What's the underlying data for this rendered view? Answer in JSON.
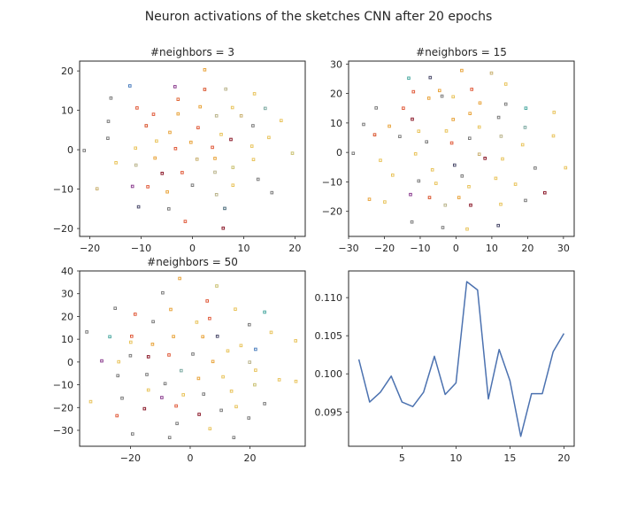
{
  "figure": {
    "title": "Neuron activations of the sketches CNN after 20 epochs",
    "background": "#ffffff",
    "axes_color": "#262626"
  },
  "chart_data": [
    {
      "type": "scatter",
      "title": "#neighbors = 3",
      "xlim": [
        -22,
        22
      ],
      "ylim": [
        -22,
        22.5
      ],
      "xticks": [
        -20,
        -10,
        0,
        10,
        20
      ],
      "yticks": [
        -20,
        -10,
        0,
        10,
        20
      ],
      "grid": false,
      "points": [
        {
          "x": 2.4,
          "y": 20.3,
          "color": "#e8a33a"
        },
        {
          "x": -12.2,
          "y": 16.2,
          "color": "#4a7dbd"
        },
        {
          "x": -3.4,
          "y": 16.0,
          "color": "#8b3d8f"
        },
        {
          "x": 2.4,
          "y": 15.3,
          "color": "#d9532c"
        },
        {
          "x": 6.5,
          "y": 15.4,
          "color": "#b9b38a"
        },
        {
          "x": -15.9,
          "y": 13.1,
          "color": "#7a7a7a"
        },
        {
          "x": -2.8,
          "y": 12.8,
          "color": "#e06a3a"
        },
        {
          "x": 12.1,
          "y": 14.2,
          "color": "#e8c35a"
        },
        {
          "x": -10.8,
          "y": 10.6,
          "color": "#e05a3a"
        },
        {
          "x": 1.5,
          "y": 10.9,
          "color": "#e8a33a"
        },
        {
          "x": 7.8,
          "y": 10.7,
          "color": "#e8c35a"
        },
        {
          "x": 14.2,
          "y": 10.5,
          "color": "#7aa8a0"
        },
        {
          "x": -7.6,
          "y": 9.0,
          "color": "#e05a3a"
        },
        {
          "x": -2.8,
          "y": 9.1,
          "color": "#e8a33a"
        },
        {
          "x": 4.7,
          "y": 8.6,
          "color": "#b9b38a"
        },
        {
          "x": 9.5,
          "y": 8.6,
          "color": "#c9b070"
        },
        {
          "x": -16.4,
          "y": 7.2,
          "color": "#7a7a7a"
        },
        {
          "x": 17.3,
          "y": 7.4,
          "color": "#e8c35a"
        },
        {
          "x": -9.0,
          "y": 6.1,
          "color": "#d9532c"
        },
        {
          "x": 1.1,
          "y": 5.6,
          "color": "#e05a3a"
        },
        {
          "x": 11.8,
          "y": 6.1,
          "color": "#7a7a7a"
        },
        {
          "x": -4.4,
          "y": 4.4,
          "color": "#e8a33a"
        },
        {
          "x": 5.6,
          "y": 3.9,
          "color": "#e8c35a"
        },
        {
          "x": -16.5,
          "y": 2.9,
          "color": "#7a7a7a"
        },
        {
          "x": -7.0,
          "y": 2.2,
          "color": "#e8c35a"
        },
        {
          "x": -0.3,
          "y": 1.9,
          "color": "#e8a33a"
        },
        {
          "x": 7.5,
          "y": 2.6,
          "color": "#8b1a2a"
        },
        {
          "x": 14.9,
          "y": 3.1,
          "color": "#e8c35a"
        },
        {
          "x": -11.1,
          "y": 0.4,
          "color": "#e8c35a"
        },
        {
          "x": -3.3,
          "y": 0.3,
          "color": "#e05a3a"
        },
        {
          "x": 3.9,
          "y": 0.6,
          "color": "#e05a3a"
        },
        {
          "x": 11.6,
          "y": 0.9,
          "color": "#e8c35a"
        },
        {
          "x": -21.1,
          "y": -0.2,
          "color": "#7a7a7a"
        },
        {
          "x": 19.5,
          "y": -0.9,
          "color": "#c9c070"
        },
        {
          "x": -7.3,
          "y": -2.1,
          "color": "#e8a33a"
        },
        {
          "x": 0.9,
          "y": -2.4,
          "color": "#c9b070"
        },
        {
          "x": 4.4,
          "y": -2.2,
          "color": "#e8a33a"
        },
        {
          "x": 11.9,
          "y": -2.5,
          "color": "#e8c35a"
        },
        {
          "x": -14.9,
          "y": -3.3,
          "color": "#e8c35a"
        },
        {
          "x": -11.0,
          "y": -3.9,
          "color": "#b9b38a"
        },
        {
          "x": 7.9,
          "y": -4.5,
          "color": "#c9c070"
        },
        {
          "x": -5.9,
          "y": -6.0,
          "color": "#8b1a2a"
        },
        {
          "x": -2.0,
          "y": -5.8,
          "color": "#e05a3a"
        },
        {
          "x": 4.4,
          "y": -5.7,
          "color": "#b9b38a"
        },
        {
          "x": 12.8,
          "y": -7.5,
          "color": "#7a7a7a"
        },
        {
          "x": -11.7,
          "y": -9.3,
          "color": "#8b3d8f"
        },
        {
          "x": -8.7,
          "y": -9.4,
          "color": "#e05a3a"
        },
        {
          "x": 0.0,
          "y": -9.0,
          "color": "#7a7a7a"
        },
        {
          "x": 7.9,
          "y": -9.0,
          "color": "#e8c35a"
        },
        {
          "x": -18.6,
          "y": -9.9,
          "color": "#c9b070"
        },
        {
          "x": -4.9,
          "y": -10.7,
          "color": "#e8a33a"
        },
        {
          "x": 4.7,
          "y": -11.4,
          "color": "#b9b38a"
        },
        {
          "x": 15.5,
          "y": -10.9,
          "color": "#7a7a7a"
        },
        {
          "x": -10.5,
          "y": -14.5,
          "color": "#4a4a6a"
        },
        {
          "x": -4.6,
          "y": -15.0,
          "color": "#7a7a7a"
        },
        {
          "x": 6.3,
          "y": -14.9,
          "color": "#4a6a7a"
        },
        {
          "x": -1.4,
          "y": -18.2,
          "color": "#e05a3a"
        },
        {
          "x": 6.0,
          "y": -19.9,
          "color": "#8b1a2a"
        }
      ]
    },
    {
      "type": "scatter",
      "title": "#neighbors = 15",
      "xlim": [
        -30,
        33
      ],
      "ylim": [
        -28.5,
        31
      ],
      "xticks": [
        -30,
        -20,
        -10,
        0,
        10,
        20,
        30
      ],
      "yticks": [
        -20,
        -10,
        0,
        10,
        20,
        30
      ],
      "grid": false,
      "points": [
        {
          "x": 1.6,
          "y": 27.8,
          "color": "#e8a33a"
        },
        {
          "x": 9.9,
          "y": 26.9,
          "color": "#c9b070"
        },
        {
          "x": -13.2,
          "y": 25.2,
          "color": "#4aa8a0"
        },
        {
          "x": -7.2,
          "y": 25.4,
          "color": "#4a4a6a"
        },
        {
          "x": 13.9,
          "y": 23.2,
          "color": "#e8c35a"
        },
        {
          "x": -11.9,
          "y": 20.6,
          "color": "#e05a3a"
        },
        {
          "x": -4.6,
          "y": 21.0,
          "color": "#e8a33a"
        },
        {
          "x": 4.4,
          "y": 21.4,
          "color": "#e05a3a"
        },
        {
          "x": -3.9,
          "y": 19.1,
          "color": "#7a7a7a"
        },
        {
          "x": -7.6,
          "y": 18.4,
          "color": "#e8a33a"
        },
        {
          "x": -0.8,
          "y": 18.9,
          "color": "#e8c35a"
        },
        {
          "x": 6.7,
          "y": 16.8,
          "color": "#e8a33a"
        },
        {
          "x": 13.9,
          "y": 16.4,
          "color": "#7a7a7a"
        },
        {
          "x": 19.5,
          "y": 15.0,
          "color": "#4aa8a0"
        },
        {
          "x": -22.3,
          "y": 15.1,
          "color": "#7a7a7a"
        },
        {
          "x": -14.7,
          "y": 15.0,
          "color": "#e05a3a"
        },
        {
          "x": 27.4,
          "y": 13.6,
          "color": "#e8c35a"
        },
        {
          "x": 3.9,
          "y": 13.2,
          "color": "#e8a33a"
        },
        {
          "x": 11.9,
          "y": 11.9,
          "color": "#7a7a7a"
        },
        {
          "x": -12.2,
          "y": 11.3,
          "color": "#8b1a2a"
        },
        {
          "x": -0.8,
          "y": 11.2,
          "color": "#e8a33a"
        },
        {
          "x": -25.8,
          "y": 9.5,
          "color": "#7a7a7a"
        },
        {
          "x": -18.6,
          "y": 8.9,
          "color": "#e8a33a"
        },
        {
          "x": 6.5,
          "y": 8.6,
          "color": "#e8c35a"
        },
        {
          "x": 19.3,
          "y": 8.5,
          "color": "#7aa8a0"
        },
        {
          "x": -10.4,
          "y": 7.2,
          "color": "#e8c35a"
        },
        {
          "x": -2.7,
          "y": 7.3,
          "color": "#e8c35a"
        },
        {
          "x": -22.7,
          "y": 6.0,
          "color": "#d9532c"
        },
        {
          "x": -15.7,
          "y": 5.4,
          "color": "#7a7a7a"
        },
        {
          "x": 27.2,
          "y": 5.6,
          "color": "#e8c35a"
        },
        {
          "x": 12.6,
          "y": 5.5,
          "color": "#b9b38a"
        },
        {
          "x": 3.8,
          "y": 4.8,
          "color": "#7a7a7a"
        },
        {
          "x": -8.2,
          "y": 3.6,
          "color": "#7a7a7a"
        },
        {
          "x": -1.2,
          "y": 3.2,
          "color": "#e05a3a"
        },
        {
          "x": 18.6,
          "y": 2.6,
          "color": "#e8c35a"
        },
        {
          "x": -28.7,
          "y": -0.3,
          "color": "#7a7a7a"
        },
        {
          "x": -11.3,
          "y": -0.5,
          "color": "#e8c35a"
        },
        {
          "x": 6.5,
          "y": -0.6,
          "color": "#c9b070"
        },
        {
          "x": 13.0,
          "y": -2.2,
          "color": "#e8c35a"
        },
        {
          "x": 8.1,
          "y": -2.0,
          "color": "#8b1a2a"
        },
        {
          "x": -21.1,
          "y": -2.7,
          "color": "#e8c35a"
        },
        {
          "x": -0.4,
          "y": -4.3,
          "color": "#4a4a6a"
        },
        {
          "x": 22.1,
          "y": -5.3,
          "color": "#7a7a7a"
        },
        {
          "x": 30.6,
          "y": -5.2,
          "color": "#e8c35a"
        },
        {
          "x": -6.6,
          "y": -5.9,
          "color": "#e8c35a"
        },
        {
          "x": -17.7,
          "y": -7.7,
          "color": "#e8c35a"
        },
        {
          "x": 1.7,
          "y": -8.0,
          "color": "#7a7a7a"
        },
        {
          "x": 11.1,
          "y": -8.8,
          "color": "#e8c35a"
        },
        {
          "x": -10.4,
          "y": -9.7,
          "color": "#7a7a7a"
        },
        {
          "x": -5.6,
          "y": -10.5,
          "color": "#e8c35a"
        },
        {
          "x": 16.6,
          "y": -10.8,
          "color": "#e8c35a"
        },
        {
          "x": 3.6,
          "y": -11.6,
          "color": "#e8c35a"
        },
        {
          "x": -12.7,
          "y": -14.3,
          "color": "#8b3d8f"
        },
        {
          "x": 24.8,
          "y": -13.7,
          "color": "#8b1a2a"
        },
        {
          "x": -7.4,
          "y": -15.3,
          "color": "#d9532c"
        },
        {
          "x": 0.8,
          "y": -15.3,
          "color": "#e8a33a"
        },
        {
          "x": -24.2,
          "y": -15.9,
          "color": "#e8a33a"
        },
        {
          "x": 19.4,
          "y": -16.3,
          "color": "#7a7a7a"
        },
        {
          "x": -19.9,
          "y": -16.8,
          "color": "#e8c35a"
        },
        {
          "x": 12.5,
          "y": -17.6,
          "color": "#e8c35a"
        },
        {
          "x": -3.0,
          "y": -17.9,
          "color": "#b9b38a"
        },
        {
          "x": 4.1,
          "y": -17.9,
          "color": "#8b1a2a"
        },
        {
          "x": -12.3,
          "y": -23.6,
          "color": "#7a7a7a"
        },
        {
          "x": 11.8,
          "y": -24.8,
          "color": "#4a4a6a"
        },
        {
          "x": -3.7,
          "y": -25.5,
          "color": "#7a7a7a"
        },
        {
          "x": 3.1,
          "y": -26.0,
          "color": "#e8c35a"
        }
      ]
    },
    {
      "type": "scatter",
      "title": "#neighbors = 50",
      "xlim": [
        -37,
        38.5
      ],
      "ylim": [
        -37,
        40
      ],
      "xticks": [
        -20,
        0,
        20
      ],
      "yticks": [
        -30,
        -20,
        -10,
        0,
        10,
        20,
        30,
        40
      ],
      "grid": false,
      "points": [
        {
          "x": -3.5,
          "y": 36.7,
          "color": "#e8a33a"
        },
        {
          "x": 8.9,
          "y": 33.4,
          "color": "#c9c070"
        },
        {
          "x": -9.2,
          "y": 30.4,
          "color": "#7a7a7a"
        },
        {
          "x": 5.7,
          "y": 26.8,
          "color": "#e05a3a"
        },
        {
          "x": -25.1,
          "y": 23.6,
          "color": "#7a7a7a"
        },
        {
          "x": -6.5,
          "y": 23.1,
          "color": "#e8a33a"
        },
        {
          "x": 15.1,
          "y": 23.2,
          "color": "#e8c35a"
        },
        {
          "x": 24.9,
          "y": 21.9,
          "color": "#4aa8a0"
        },
        {
          "x": -18.4,
          "y": 21.0,
          "color": "#e05a3a"
        },
        {
          "x": 6.5,
          "y": 19.1,
          "color": "#e05a3a"
        },
        {
          "x": -12.4,
          "y": 17.7,
          "color": "#7a7a7a"
        },
        {
          "x": 2.2,
          "y": 17.5,
          "color": "#e8c35a"
        },
        {
          "x": 19.8,
          "y": 16.4,
          "color": "#7a7a7a"
        },
        {
          "x": -34.6,
          "y": 13.2,
          "color": "#7a7a7a"
        },
        {
          "x": 27.1,
          "y": 13.0,
          "color": "#e8c35a"
        },
        {
          "x": -26.9,
          "y": 11.1,
          "color": "#4aa8a0"
        },
        {
          "x": -19.6,
          "y": 11.3,
          "color": "#e05a3a"
        },
        {
          "x": -5.6,
          "y": 11.2,
          "color": "#e8a33a"
        },
        {
          "x": 9.1,
          "y": 11.3,
          "color": "#4a4a6a"
        },
        {
          "x": 4.2,
          "y": 11.1,
          "color": "#e8a33a"
        },
        {
          "x": 35.3,
          "y": 9.3,
          "color": "#e8c35a"
        },
        {
          "x": -19.9,
          "y": 8.7,
          "color": "#e8c35a"
        },
        {
          "x": -12.6,
          "y": 7.8,
          "color": "#e8a33a"
        },
        {
          "x": 17.0,
          "y": 7.2,
          "color": "#e8c35a"
        },
        {
          "x": 12.6,
          "y": 4.9,
          "color": "#e8c35a"
        },
        {
          "x": 21.9,
          "y": 5.6,
          "color": "#4a7dbd"
        },
        {
          "x": -14.0,
          "y": 2.3,
          "color": "#8b1a2a"
        },
        {
          "x": -20.0,
          "y": 2.8,
          "color": "#7a7a7a"
        },
        {
          "x": -7.1,
          "y": 3.1,
          "color": "#e05a3a"
        },
        {
          "x": 0.9,
          "y": 3.5,
          "color": "#7a7a7a"
        },
        {
          "x": -29.6,
          "y": 0.5,
          "color": "#8b3d8f"
        },
        {
          "x": -23.9,
          "y": 0.1,
          "color": "#e8c35a"
        },
        {
          "x": 7.6,
          "y": 0.2,
          "color": "#e8a33a"
        },
        {
          "x": 19.9,
          "y": -0.1,
          "color": "#b9b38a"
        },
        {
          "x": -3.0,
          "y": -3.8,
          "color": "#7aa8a0"
        },
        {
          "x": 21.9,
          "y": -3.6,
          "color": "#e8c35a"
        },
        {
          "x": -24.2,
          "y": -6.0,
          "color": "#7a7a7a"
        },
        {
          "x": -14.5,
          "y": -5.5,
          "color": "#7a7a7a"
        },
        {
          "x": 11.0,
          "y": -6.5,
          "color": "#e8c35a"
        },
        {
          "x": 2.8,
          "y": -7.2,
          "color": "#e8a33a"
        },
        {
          "x": 29.8,
          "y": -7.8,
          "color": "#e8c35a"
        },
        {
          "x": 35.4,
          "y": -8.5,
          "color": "#e8c35a"
        },
        {
          "x": -8.4,
          "y": -9.5,
          "color": "#7a7a7a"
        },
        {
          "x": 21.6,
          "y": -10.0,
          "color": "#c9c070"
        },
        {
          "x": -14.0,
          "y": -12.3,
          "color": "#e8c35a"
        },
        {
          "x": 13.8,
          "y": -12.8,
          "color": "#e8c35a"
        },
        {
          "x": -2.3,
          "y": -14.4,
          "color": "#e8c35a"
        },
        {
          "x": 4.5,
          "y": -14.1,
          "color": "#7a7a7a"
        },
        {
          "x": -22.8,
          "y": -15.9,
          "color": "#7a7a7a"
        },
        {
          "x": -9.5,
          "y": -15.6,
          "color": "#8b3d8f"
        },
        {
          "x": -33.3,
          "y": -17.4,
          "color": "#e8c35a"
        },
        {
          "x": 24.9,
          "y": -18.3,
          "color": "#7a7a7a"
        },
        {
          "x": -4.7,
          "y": -19.3,
          "color": "#e05a3a"
        },
        {
          "x": 15.4,
          "y": -19.6,
          "color": "#e8c35a"
        },
        {
          "x": -15.3,
          "y": -20.5,
          "color": "#8b1a2a"
        },
        {
          "x": 10.4,
          "y": -21.2,
          "color": "#7a7a7a"
        },
        {
          "x": 3.0,
          "y": -23.0,
          "color": "#8b1a2a"
        },
        {
          "x": -24.5,
          "y": -23.6,
          "color": "#e05a3a"
        },
        {
          "x": 19.6,
          "y": -24.6,
          "color": "#7a7a7a"
        },
        {
          "x": -4.4,
          "y": -27.0,
          "color": "#7a7a7a"
        },
        {
          "x": 6.6,
          "y": -29.3,
          "color": "#e8c35a"
        },
        {
          "x": -19.3,
          "y": -31.6,
          "color": "#7a7a7a"
        },
        {
          "x": -6.9,
          "y": -33.2,
          "color": "#7a7a7a"
        },
        {
          "x": 14.6,
          "y": -33.2,
          "color": "#7a7a7a"
        }
      ]
    },
    {
      "type": "line",
      "title": "",
      "xlim": [
        0.05,
        20.95
      ],
      "ylim": [
        0.0905,
        0.1135
      ],
      "xticks": [
        5,
        10,
        15,
        20
      ],
      "yticks": [
        0.095,
        0.1,
        0.105,
        0.11
      ],
      "ytick_labels": [
        "0.095",
        "0.100",
        "0.105",
        "0.110"
      ],
      "grid": false,
      "series": [
        {
          "color": "#4c72b0",
          "x": [
            1,
            2,
            3,
            4,
            5,
            6,
            7,
            8,
            9,
            10,
            11,
            12,
            13,
            14,
            15,
            16,
            17,
            18,
            19,
            20
          ],
          "values": [
            0.1019,
            0.0963,
            0.0976,
            0.0997,
            0.0963,
            0.0957,
            0.0976,
            0.1023,
            0.0973,
            0.0988,
            0.1121,
            0.111,
            0.0967,
            0.1032,
            0.0991,
            0.0918,
            0.0974,
            0.0974,
            0.1029,
            0.1053
          ]
        }
      ]
    }
  ]
}
